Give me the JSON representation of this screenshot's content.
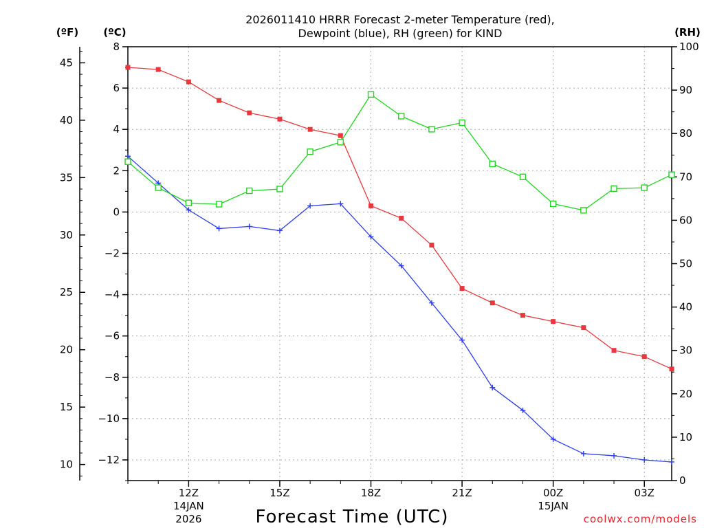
{
  "chart_data": {
    "type": "line",
    "title_line1": "2026011410 HRRR Forecast 2-meter Temperature (red),",
    "title_line2": "Dewpoint (blue), RH (green) for KIND",
    "xlabel": "Forecast Time (UTC)",
    "credit": "coolwx.com/models",
    "units": {
      "fahrenheit": "(ºF)",
      "celsius": "(ºC)",
      "rh": "(RH)"
    },
    "celsius_axis": {
      "min": -13,
      "max": 8,
      "ticks": [
        8,
        6,
        4,
        2,
        0,
        -2,
        -4,
        -6,
        -8,
        -10,
        -12
      ],
      "tick_labels": [
        "8",
        "6",
        "4",
        "2",
        "0",
        "−2",
        "−4",
        "−6",
        "−8",
        "−10",
        "−12"
      ]
    },
    "fahrenheit_axis": {
      "ticks": [
        45,
        40,
        35,
        30,
        25,
        20,
        15,
        10
      ],
      "tick_labels": [
        "45",
        "40",
        "35",
        "30",
        "25",
        "20",
        "15",
        "10"
      ]
    },
    "rh_axis": {
      "min": 0,
      "max": 100,
      "ticks": [
        100,
        90,
        80,
        70,
        60,
        50,
        40,
        30,
        20,
        10,
        0
      ],
      "tick_labels": [
        "100",
        "90",
        "80",
        "70",
        "60",
        "50",
        "40",
        "30",
        "20",
        "10",
        "0"
      ]
    },
    "x_axis": {
      "min_hour": 10,
      "max_hour": 27.9,
      "ticks": [
        {
          "hour": 12,
          "label": "12Z",
          "sub1": "14JAN",
          "sub2": "2026"
        },
        {
          "hour": 15,
          "label": "15Z",
          "sub1": "",
          "sub2": ""
        },
        {
          "hour": 18,
          "label": "18Z",
          "sub1": "",
          "sub2": ""
        },
        {
          "hour": 21,
          "label": "21Z",
          "sub1": "",
          "sub2": ""
        },
        {
          "hour": 24,
          "label": "00Z",
          "sub1": "15JAN",
          "sub2": ""
        },
        {
          "hour": 27,
          "label": "03Z",
          "sub1": "",
          "sub2": ""
        }
      ]
    },
    "hours": [
      10,
      11,
      12,
      13,
      14,
      15,
      16,
      17,
      18,
      19,
      20,
      21,
      22,
      23,
      24,
      25,
      26,
      27,
      27.9
    ],
    "series": [
      {
        "name": "Temperature",
        "color": "#e8383d",
        "marker": "filled-square",
        "values_c": [
          7.0,
          6.9,
          6.3,
          5.4,
          4.8,
          4.5,
          4.0,
          3.7,
          0.3,
          -0.3,
          -1.6,
          -3.7,
          -4.4,
          -5.0,
          -5.3,
          -5.6,
          -6.7,
          -7.0,
          -7.6
        ]
      },
      {
        "name": "Dewpoint",
        "color": "#2b3ce8",
        "marker": "plus",
        "values_c": [
          2.7,
          1.4,
          0.1,
          -0.8,
          -0.7,
          -0.9,
          0.3,
          0.4,
          -1.2,
          -2.6,
          -4.4,
          -6.2,
          -8.5,
          -9.6,
          -11.0,
          -11.7,
          -11.8,
          -12.0,
          -12.1
        ]
      },
      {
        "name": "RH",
        "color": "#22d422",
        "marker": "open-square",
        "values_rh": [
          73.5,
          67.5,
          64.0,
          63.7,
          66.8,
          67.2,
          75.8,
          78.0,
          89.0,
          84.0,
          81.0,
          82.5,
          73.0,
          70.0,
          63.8,
          62.3,
          67.3,
          67.5,
          70.5
        ]
      }
    ]
  }
}
